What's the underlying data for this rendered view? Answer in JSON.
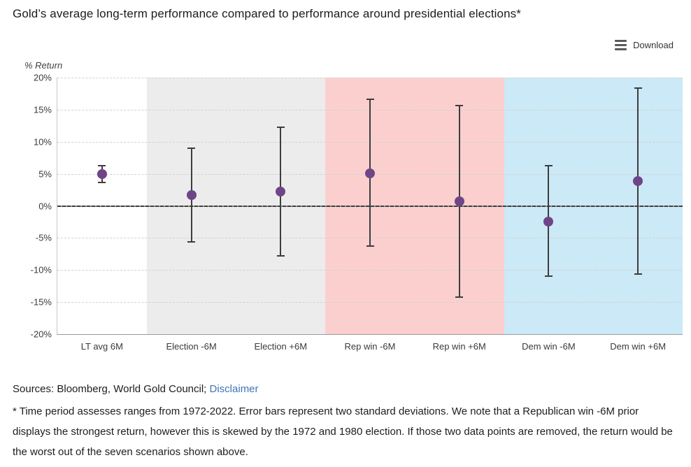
{
  "title": "Gold’s average long-term performance compared to performance around presidential elections*",
  "toolbar": {
    "download_label": "Download",
    "download_icon": "menu-lines-icon"
  },
  "footer": {
    "sources_text": "Sources: Bloomberg, World Gold Council; ",
    "disclaimer_label": "Disclaimer",
    "footnote": "* Time period assesses ranges from 1972-2022. Error bars represent two standard deviations. We note that a Republican win -6M prior displays the strongest return, however this is skewed by the 1972 and 1980 election. If those two data points are removed, the return would be the worst out of the seven scenarios shown above."
  },
  "colors": {
    "dot": "#6f4587",
    "whisker": "#3d3d3d",
    "band_neutral": "#ececec",
    "band_republican": "#fccfcf",
    "band_democrat": "#cbe9f6",
    "gridline": "#d2d2d2",
    "zero_line": "#3f3f3f",
    "link": "#3f76b5"
  },
  "chart_data": {
    "type": "scatter",
    "subtype": "dot-with-error-bars",
    "title": "Gold’s average long-term performance compared to performance around presidential elections*",
    "ylabel": "% Return",
    "xlabel": "",
    "ylim": [
      -20,
      20
    ],
    "yticks": [
      20,
      15,
      10,
      5,
      0,
      -5,
      -10,
      -15,
      -20
    ],
    "ytick_labels": [
      "20%",
      "15%",
      "10%",
      "5%",
      "0%",
      "-5%",
      "-10%",
      "-15%",
      "-20%"
    ],
    "grid": "horizontal-dashed",
    "legend": "none",
    "categories": [
      "LT avg 6M",
      "Election -6M",
      "Election +6M",
      "Rep win -6M",
      "Rep win +6M",
      "Dem win -6M",
      "Dem win +6M"
    ],
    "points": [
      {
        "category": "LT avg 6M",
        "mean": 5.0,
        "upper": 6.3,
        "lower": 3.7,
        "band": "white"
      },
      {
        "category": "Election -6M",
        "mean": 1.7,
        "upper": 9.0,
        "lower": -5.6,
        "band": "neutral"
      },
      {
        "category": "Election +6M",
        "mean": 2.2,
        "upper": 12.3,
        "lower": -7.8,
        "band": "neutral"
      },
      {
        "category": "Rep win -6M",
        "mean": 5.1,
        "upper": 16.6,
        "lower": -6.3,
        "band": "republican"
      },
      {
        "category": "Rep win +6M",
        "mean": 0.7,
        "upper": 15.6,
        "lower": -14.2,
        "band": "republican"
      },
      {
        "category": "Dem win -6M",
        "mean": -2.4,
        "upper": 6.3,
        "lower": -10.9,
        "band": "democrat"
      },
      {
        "category": "Dem win +6M",
        "mean": 3.9,
        "upper": 18.4,
        "lower": -10.6,
        "band": "democrat"
      }
    ]
  }
}
